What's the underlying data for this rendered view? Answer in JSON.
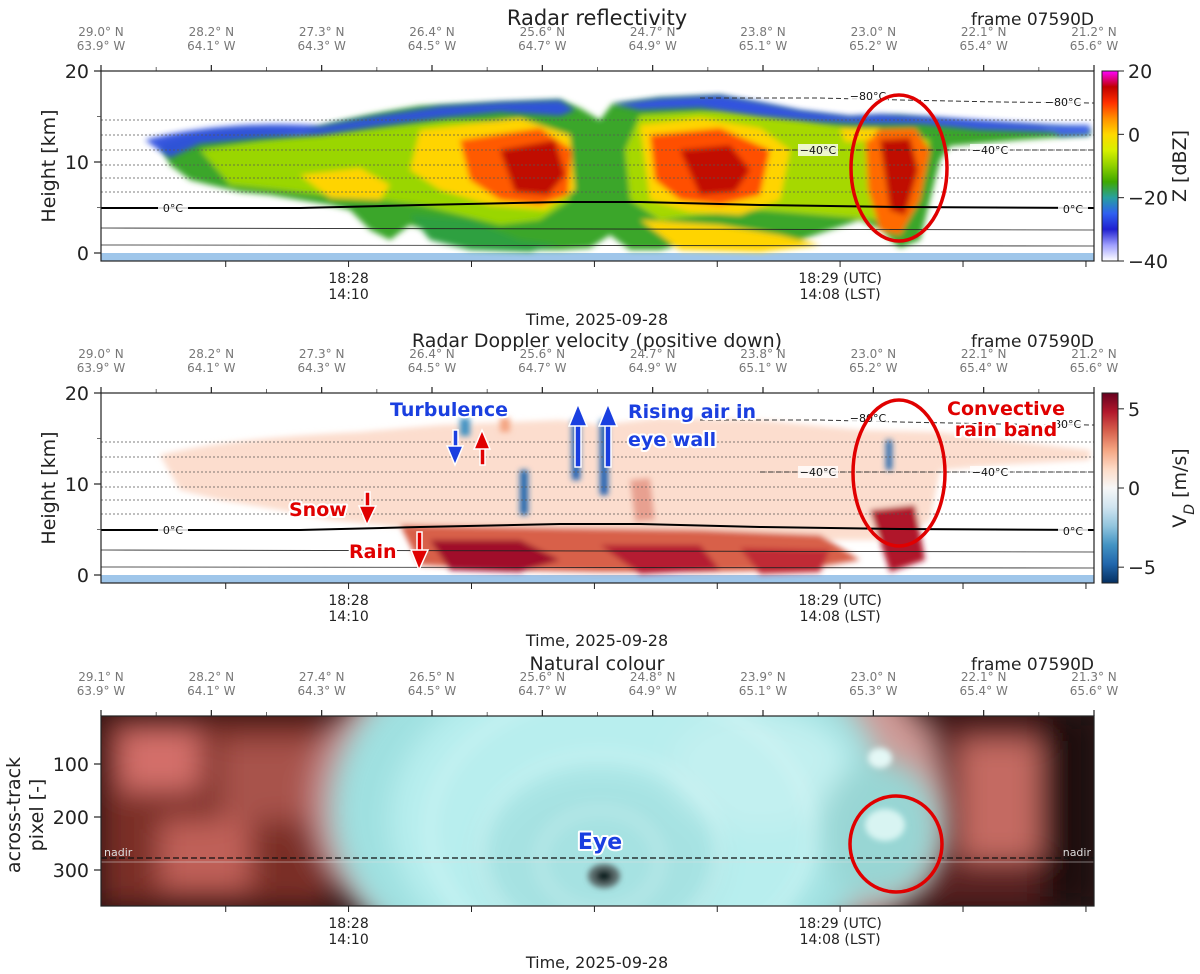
{
  "figure": {
    "frame_label": "frame 07590D",
    "time_xlabel": "Time, 2025-09-28",
    "time_ticks": [
      {
        "utc": "18:28",
        "lst": "14:10"
      },
      {
        "utc": "18:29 (UTC)",
        "lst": "14:08 (LST)"
      }
    ],
    "coord_ticks_radar": [
      {
        "lat": "29.0° N",
        "lon": "63.9° W"
      },
      {
        "lat": "28.2° N",
        "lon": "64.1° W"
      },
      {
        "lat": "27.3° N",
        "lon": "64.3° W"
      },
      {
        "lat": "26.4° N",
        "lon": "64.5° W"
      },
      {
        "lat": "25.6° N",
        "lon": "64.7° W"
      },
      {
        "lat": "24.7° N",
        "lon": "64.9° W"
      },
      {
        "lat": "23.8° N",
        "lon": "65.1° W"
      },
      {
        "lat": "23.0° N",
        "lon": "65.2° W"
      },
      {
        "lat": "22.1° N",
        "lon": "65.4° W"
      },
      {
        "lat": "21.2° N",
        "lon": "65.6° W"
      }
    ],
    "coord_ticks_image": [
      {
        "lat": "29.1° N",
        "lon": "63.9° W"
      },
      {
        "lat": "28.2° N",
        "lon": "64.1° W"
      },
      {
        "lat": "27.4° N",
        "lon": "64.3° W"
      },
      {
        "lat": "26.5° N",
        "lon": "64.5° W"
      },
      {
        "lat": "25.6° N",
        "lon": "64.7° W"
      },
      {
        "lat": "24.8° N",
        "lon": "64.9° W"
      },
      {
        "lat": "23.9° N",
        "lon": "65.1° W"
      },
      {
        "lat": "23.0° N",
        "lon": "65.3° W"
      },
      {
        "lat": "22.1° N",
        "lon": "65.4° W"
      },
      {
        "lat": "21.3° N",
        "lon": "65.6° W"
      }
    ]
  },
  "panels": {
    "reflectivity": {
      "title": "Radar reflectivity",
      "ylabel": "Height [km]",
      "yticks": [
        "0",
        "10",
        "20"
      ],
      "cbar_label": "Z [dBZ]",
      "cbar_ticks": [
        "20",
        "0",
        "−20",
        "−40"
      ],
      "cbar_colors": [
        "#ff00ff",
        "#c00000",
        "#ff3000",
        "#ff9000",
        "#ffd800",
        "#d8f000",
        "#8fd000",
        "#3fa800",
        "#28a0a0",
        "#3060f0",
        "#2020d0",
        "#a0a0ff",
        "#ffffff"
      ]
    },
    "doppler": {
      "title": "Radar Doppler velocity (positive down)",
      "ylabel": "Height [km]",
      "yticks": [
        "0",
        "10",
        "20"
      ],
      "cbar_label": "V_D [m/s]",
      "cbar_ticks": [
        "5",
        "0",
        "−5"
      ],
      "cbar_colors": [
        "#67001f",
        "#b2182b",
        "#d6604d",
        "#f4a582",
        "#fddbc7",
        "#f7f7f7",
        "#d1e5f0",
        "#92c5de",
        "#4393c3",
        "#2166ac",
        "#053061"
      ],
      "annotations": {
        "turbulence": "Turbulence",
        "rising_line1": "Rising air in",
        "rising_line2": "eye wall",
        "convective_line1": "Convective",
        "convective_line2": "rain band",
        "snow": "Snow",
        "rain": "Rain"
      }
    },
    "natural": {
      "title": "Natural colour",
      "ylabel_line1": "across-track",
      "ylabel_line2": "pixel [-]",
      "yticks": [
        "100",
        "200",
        "300"
      ],
      "nadir_label": "nadir",
      "eye_label": "Eye"
    },
    "isotherms": {
      "zero": "0°C",
      "minus40": "−40°C",
      "minus80": "−80°C"
    }
  },
  "chart_data": [
    {
      "type": "heatmap",
      "title": "Radar reflectivity",
      "xlabel": "Time, 2025-09-28",
      "ylabel": "Height [km]",
      "ylim": [
        0,
        20
      ],
      "colorbar": {
        "label": "Z [dBZ]",
        "range": [
          -40,
          20
        ],
        "ticks": [
          -40,
          -20,
          0,
          20
        ]
      },
      "isotherms_C": [
        0,
        -40,
        -80
      ],
      "highlight": "red ellipse around convective rain band near 23.0° N 65.2° W"
    },
    {
      "type": "heatmap",
      "title": "Radar Doppler velocity (positive down)",
      "xlabel": "Time, 2025-09-28",
      "ylabel": "Height [km]",
      "ylim": [
        0,
        20
      ],
      "colorbar": {
        "label": "V_D [m/s]",
        "range": [
          -6,
          6
        ],
        "ticks": [
          -5,
          0,
          5
        ]
      },
      "annotations": [
        "Turbulence",
        "Rising air in eye wall",
        "Convective rain band",
        "Snow",
        "Rain"
      ]
    },
    {
      "type": "heatmap",
      "title": "Natural colour",
      "xlabel": "Time, 2025-09-28",
      "ylabel": "across-track pixel [-]",
      "yticks": [
        100,
        200,
        300
      ],
      "annotations": [
        "Eye",
        "nadir"
      ]
    }
  ]
}
